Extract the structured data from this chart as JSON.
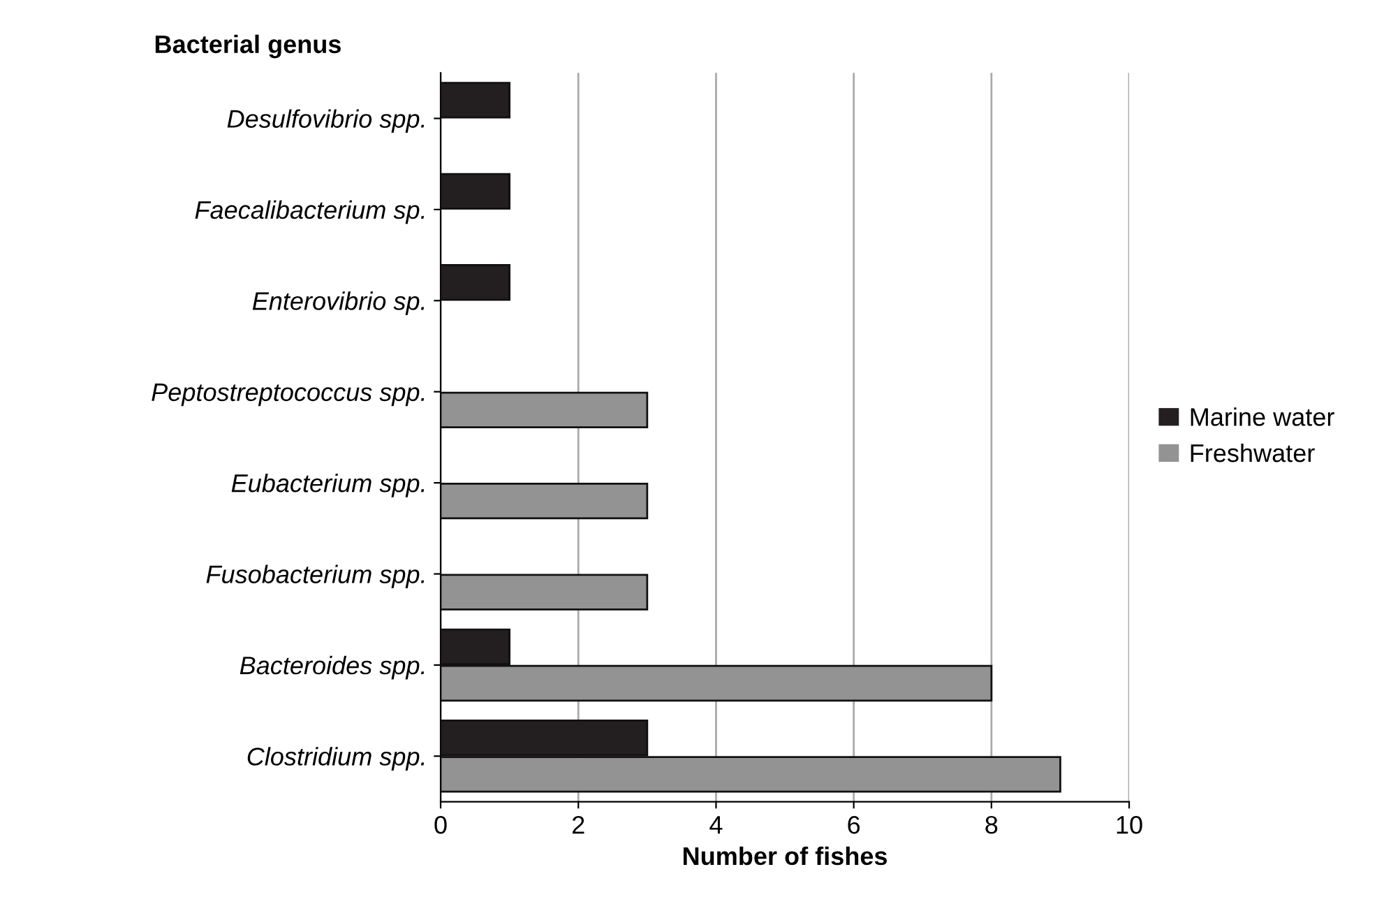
{
  "chart_data": {
    "type": "bar",
    "orientation": "horizontal",
    "ylabel": "Bacterial genus",
    "xlabel": "Number of fishes",
    "categories": [
      "Desulfovibrio spp.",
      "Faecalibacterium sp.",
      "Enterovibrio sp.",
      "Peptostreptococcus spp.",
      "Eubacterium spp.",
      "Fusobacterium spp.",
      "Bacteroides spp.",
      "Clostridium spp."
    ],
    "series": [
      {
        "name": "Marine water",
        "color": "#231f20",
        "values": [
          1,
          1,
          1,
          null,
          null,
          null,
          1,
          3
        ]
      },
      {
        "name": "Freshwater",
        "color": "#939393",
        "values": [
          null,
          null,
          null,
          3,
          3,
          3,
          8,
          9
        ]
      }
    ],
    "xlim": [
      0,
      10
    ],
    "xticks": [
      0,
      2,
      4,
      6,
      8,
      10
    ],
    "grid": "x",
    "legend": "right"
  }
}
